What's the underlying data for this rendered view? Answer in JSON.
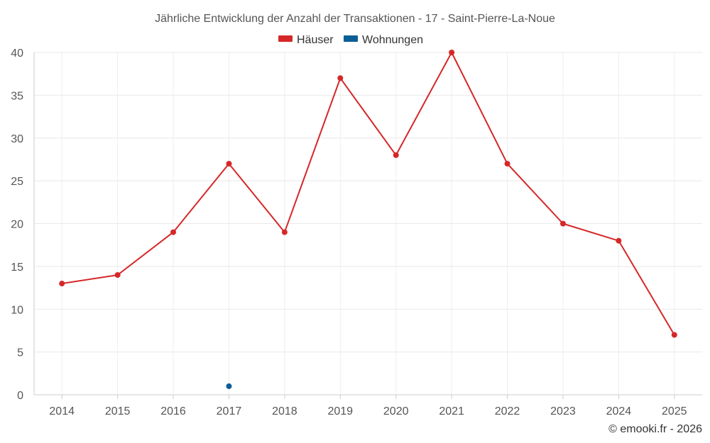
{
  "chart_data": {
    "type": "line",
    "title": "Jährliche Entwicklung der Anzahl der Transaktionen - 17 - Saint-Pierre-La-Noue",
    "categories": [
      "2014",
      "2015",
      "2016",
      "2017",
      "2018",
      "2019",
      "2020",
      "2021",
      "2022",
      "2023",
      "2024",
      "2025"
    ],
    "series": [
      {
        "name": "Häuser",
        "color": "#d62728",
        "values": [
          13,
          14,
          19,
          27,
          19,
          37,
          28,
          40,
          27,
          20,
          18,
          7
        ]
      },
      {
        "name": "Wohnungen",
        "color": "#0b5e96",
        "values": [
          null,
          null,
          null,
          1,
          null,
          null,
          null,
          null,
          null,
          null,
          null,
          null
        ]
      }
    ],
    "ylim": [
      0,
      40
    ],
    "yticks": [
      0,
      5,
      10,
      15,
      20,
      25,
      30,
      35,
      40
    ],
    "xlabel": "",
    "ylabel": "",
    "grid": true,
    "legend": "top-center"
  },
  "credit": "© emooki.fr - 2026"
}
